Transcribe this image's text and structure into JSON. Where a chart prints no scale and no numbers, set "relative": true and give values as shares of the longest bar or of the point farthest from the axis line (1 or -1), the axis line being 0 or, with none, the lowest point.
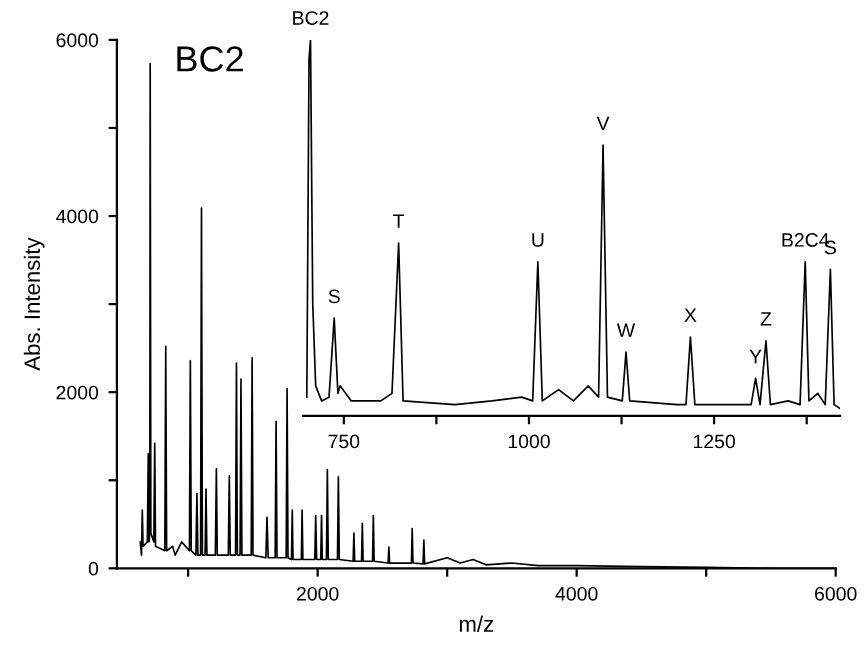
{
  "chart_data": [
    {
      "type": "line",
      "title": "BC2",
      "xlabel": "m/z",
      "ylabel": "Abs. Intensity",
      "xlim": [
        450,
        6000
      ],
      "ylim": [
        0,
        6000
      ],
      "xticks": [
        2000,
        {
          "value": 3000,
          "label": null
        },
        4000,
        {
          "value": 5000,
          "label": null
        },
        6000,
        {
          "value": 1000,
          "label": null
        }
      ],
      "yticks": [
        0,
        {
          "value": 1000,
          "label": null
        },
        2000,
        {
          "value": 3000,
          "label": null
        },
        4000,
        {
          "value": 5000,
          "label": null
        },
        6000
      ],
      "grid": false,
      "series": [
        {
          "color": "#000000",
          "x": [
            630,
            640,
            646,
            652,
            685,
            692,
            698,
            704,
            707,
            712,
            735,
            742,
            748,
            820,
            827,
            834,
            880,
            900,
            950,
            1010,
            1017,
            1024,
            1060,
            1068,
            1075,
            1096,
            1103,
            1110,
            1131,
            1138,
            1145,
            1210,
            1218,
            1225,
            1310,
            1318,
            1325,
            1366,
            1373,
            1380,
            1401,
            1408,
            1415,
            1487,
            1494,
            1501,
            1600,
            1609,
            1618,
            1672,
            1679,
            1686,
            1757,
            1764,
            1771,
            1798,
            1804,
            1810,
            1874,
            1880,
            1886,
            1978,
            1985,
            1992,
            2024,
            2030,
            2036,
            2068,
            2075,
            2082,
            2153,
            2160,
            2167,
            2274,
            2280,
            2286,
            2339,
            2345,
            2351,
            2424,
            2430,
            2436,
            2544,
            2550,
            2556,
            2724,
            2730,
            2736,
            2814,
            2820,
            2826,
            3000,
            3100,
            3200,
            3300,
            3500,
            3700,
            4000,
            4500,
            5000,
            5500,
            6000
          ],
          "values": [
            300,
            150,
            660,
            250,
            300,
            1300,
            300,
            400,
            5730,
            400,
            300,
            1420,
            250,
            200,
            2520,
            200,
            250,
            150,
            300,
            200,
            2360,
            200,
            150,
            850,
            150,
            150,
            4090,
            150,
            150,
            900,
            150,
            150,
            1130,
            150,
            150,
            1050,
            150,
            150,
            2330,
            150,
            150,
            2150,
            150,
            150,
            2390,
            150,
            120,
            580,
            120,
            120,
            1670,
            120,
            120,
            2040,
            120,
            100,
            660,
            100,
            100,
            660,
            100,
            100,
            600,
            100,
            100,
            600,
            100,
            100,
            1120,
            100,
            100,
            1040,
            100,
            80,
            400,
            80,
            80,
            510,
            80,
            80,
            600,
            80,
            60,
            240,
            60,
            60,
            450,
            60,
            50,
            320,
            50,
            120,
            60,
            100,
            40,
            60,
            30,
            30,
            20,
            10,
            0,
            0
          ]
        }
      ]
    },
    {
      "type": "line",
      "relative": true,
      "xlim": [
        695,
        1420
      ],
      "xticks": [
        750,
        {
          "value": 875,
          "label": null
        },
        1000,
        {
          "value": 1125,
          "label": null
        },
        1250,
        {
          "value": 1375,
          "label": null
        }
      ],
      "tick_labels": "x",
      "grid": false,
      "annotations": [
        {
          "text": "BC2",
          "x": 705,
          "y": 1
        },
        {
          "text": "S",
          "x": 737,
          "y": 0.26
        },
        {
          "text": "T",
          "x": 824,
          "y": 0.46
        },
        {
          "text": "U",
          "x": 1012,
          "y": 0.41
        },
        {
          "text": "V",
          "x": 1100,
          "y": 0.72
        },
        {
          "text": "W",
          "x": 1131,
          "y": 0.17
        },
        {
          "text": "X",
          "x": 1218,
          "y": 0.21
        },
        {
          "text": "Y",
          "x": 1306,
          "y": 0.1
        },
        {
          "text": "Z",
          "x": 1320,
          "y": 0.2
        },
        {
          "text": "B2C4",
          "x": 1373,
          "y": 0.41
        },
        {
          "text": "S",
          "x": 1407,
          "y": 0.39
        }
      ],
      "series": [
        {
          "color": "#000000",
          "x": [
            700,
            703,
            705,
            708,
            712,
            720,
            730,
            737,
            742,
            745,
            760,
            800,
            815,
            824,
            830,
            900,
            950,
            990,
            1005,
            1012,
            1018,
            1040,
            1060,
            1080,
            1094,
            1100,
            1106,
            1126,
            1131,
            1136,
            1200,
            1212,
            1218,
            1224,
            1300,
            1306,
            1312,
            1320,
            1326,
            1350,
            1366,
            1373,
            1378,
            1390,
            1400,
            1407,
            1412,
            1420
          ],
          "values": [
            0.05,
            0.95,
            1,
            0.3,
            0.08,
            0.04,
            0.05,
            0.26,
            0.06,
            0.08,
            0.04,
            0.04,
            0.06,
            0.46,
            0.04,
            0.03,
            0.04,
            0.05,
            0.04,
            0.41,
            0.04,
            0.07,
            0.04,
            0.08,
            0.05,
            0.72,
            0.05,
            0.04,
            0.17,
            0.04,
            0.03,
            0.03,
            0.21,
            0.03,
            0.03,
            0.1,
            0.03,
            0.2,
            0.03,
            0.04,
            0.03,
            0.41,
            0.04,
            0.06,
            0.03,
            0.39,
            0.03,
            0.02
          ]
        }
      ]
    }
  ]
}
